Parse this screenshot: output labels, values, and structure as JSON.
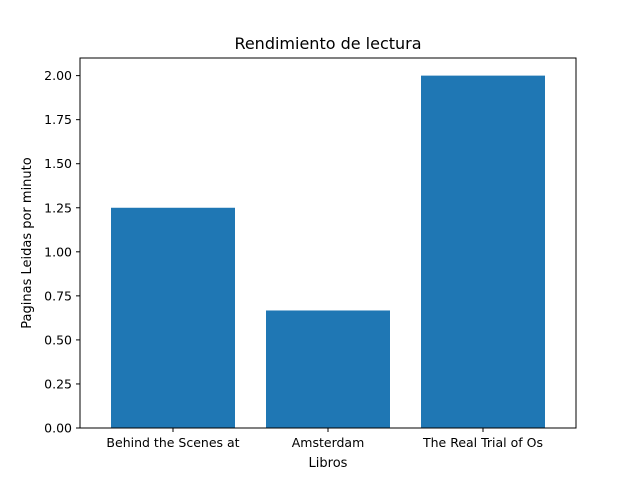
{
  "chart_data": {
    "type": "bar",
    "title": "Rendimiento de lectura",
    "xlabel": "Libros",
    "ylabel": "Paginas Leidas por minuto",
    "categories": [
      "Behind the Scenes at",
      "Amsterdam",
      "The Real Trial of Os"
    ],
    "values": [
      1.25,
      0.667,
      2.0
    ],
    "ylim": [
      0,
      2.1
    ],
    "yticks": [
      0.0,
      0.25,
      0.5,
      0.75,
      1.0,
      1.25,
      1.5,
      1.75,
      2.0
    ],
    "ytick_labels": [
      "0.00",
      "0.25",
      "0.50",
      "0.75",
      "1.00",
      "1.25",
      "1.50",
      "1.75",
      "2.00"
    ],
    "grid": false,
    "bar_color": "#1f77b4"
  }
}
